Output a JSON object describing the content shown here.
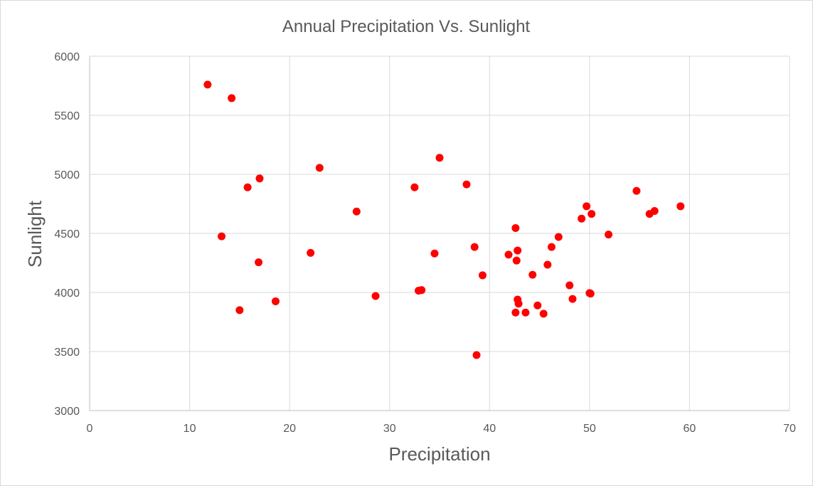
{
  "chart_data": {
    "type": "scatter",
    "title": "Annual Precipitation Vs. Sunlight",
    "xlabel": "Precipitation",
    "ylabel": "Sunlight",
    "xlim": [
      0,
      70
    ],
    "ylim": [
      3000,
      6000
    ],
    "x_ticks": [
      0,
      10,
      20,
      30,
      40,
      50,
      60,
      70
    ],
    "y_ticks": [
      3000,
      3500,
      4000,
      4500,
      5000,
      5500,
      6000
    ],
    "grid": true,
    "legend": "none",
    "marker_color": "#ff0000",
    "series": [
      {
        "points": [
          [
            11.8,
            5760
          ],
          [
            14.2,
            5645
          ],
          [
            13.2,
            4475
          ],
          [
            15.8,
            4890
          ],
          [
            17.0,
            4965
          ],
          [
            16.9,
            4255
          ],
          [
            15.0,
            3850
          ],
          [
            18.6,
            3925
          ],
          [
            22.1,
            4335
          ],
          [
            23.0,
            5055
          ],
          [
            26.7,
            4685
          ],
          [
            28.6,
            3970
          ],
          [
            32.5,
            4890
          ],
          [
            32.9,
            4015
          ],
          [
            33.2,
            4020
          ],
          [
            34.5,
            4330
          ],
          [
            35.0,
            5140
          ],
          [
            37.7,
            4915
          ],
          [
            38.5,
            4385
          ],
          [
            38.7,
            3470
          ],
          [
            39.3,
            4145
          ],
          [
            41.9,
            4320
          ],
          [
            42.6,
            4545
          ],
          [
            42.7,
            4270
          ],
          [
            42.8,
            4355
          ],
          [
            42.8,
            3940
          ],
          [
            42.9,
            3905
          ],
          [
            42.6,
            3830
          ],
          [
            43.6,
            3830
          ],
          [
            44.3,
            4150
          ],
          [
            44.8,
            3890
          ],
          [
            45.4,
            3820
          ],
          [
            45.8,
            4235
          ],
          [
            46.2,
            4385
          ],
          [
            46.9,
            4470
          ],
          [
            48.0,
            4060
          ],
          [
            48.3,
            3945
          ],
          [
            49.2,
            4625
          ],
          [
            49.7,
            4730
          ],
          [
            50.0,
            3995
          ],
          [
            50.1,
            3990
          ],
          [
            50.2,
            4665
          ],
          [
            51.9,
            4490
          ],
          [
            54.7,
            4860
          ],
          [
            56.0,
            4665
          ],
          [
            56.5,
            4690
          ],
          [
            59.1,
            4730
          ]
        ]
      }
    ]
  }
}
